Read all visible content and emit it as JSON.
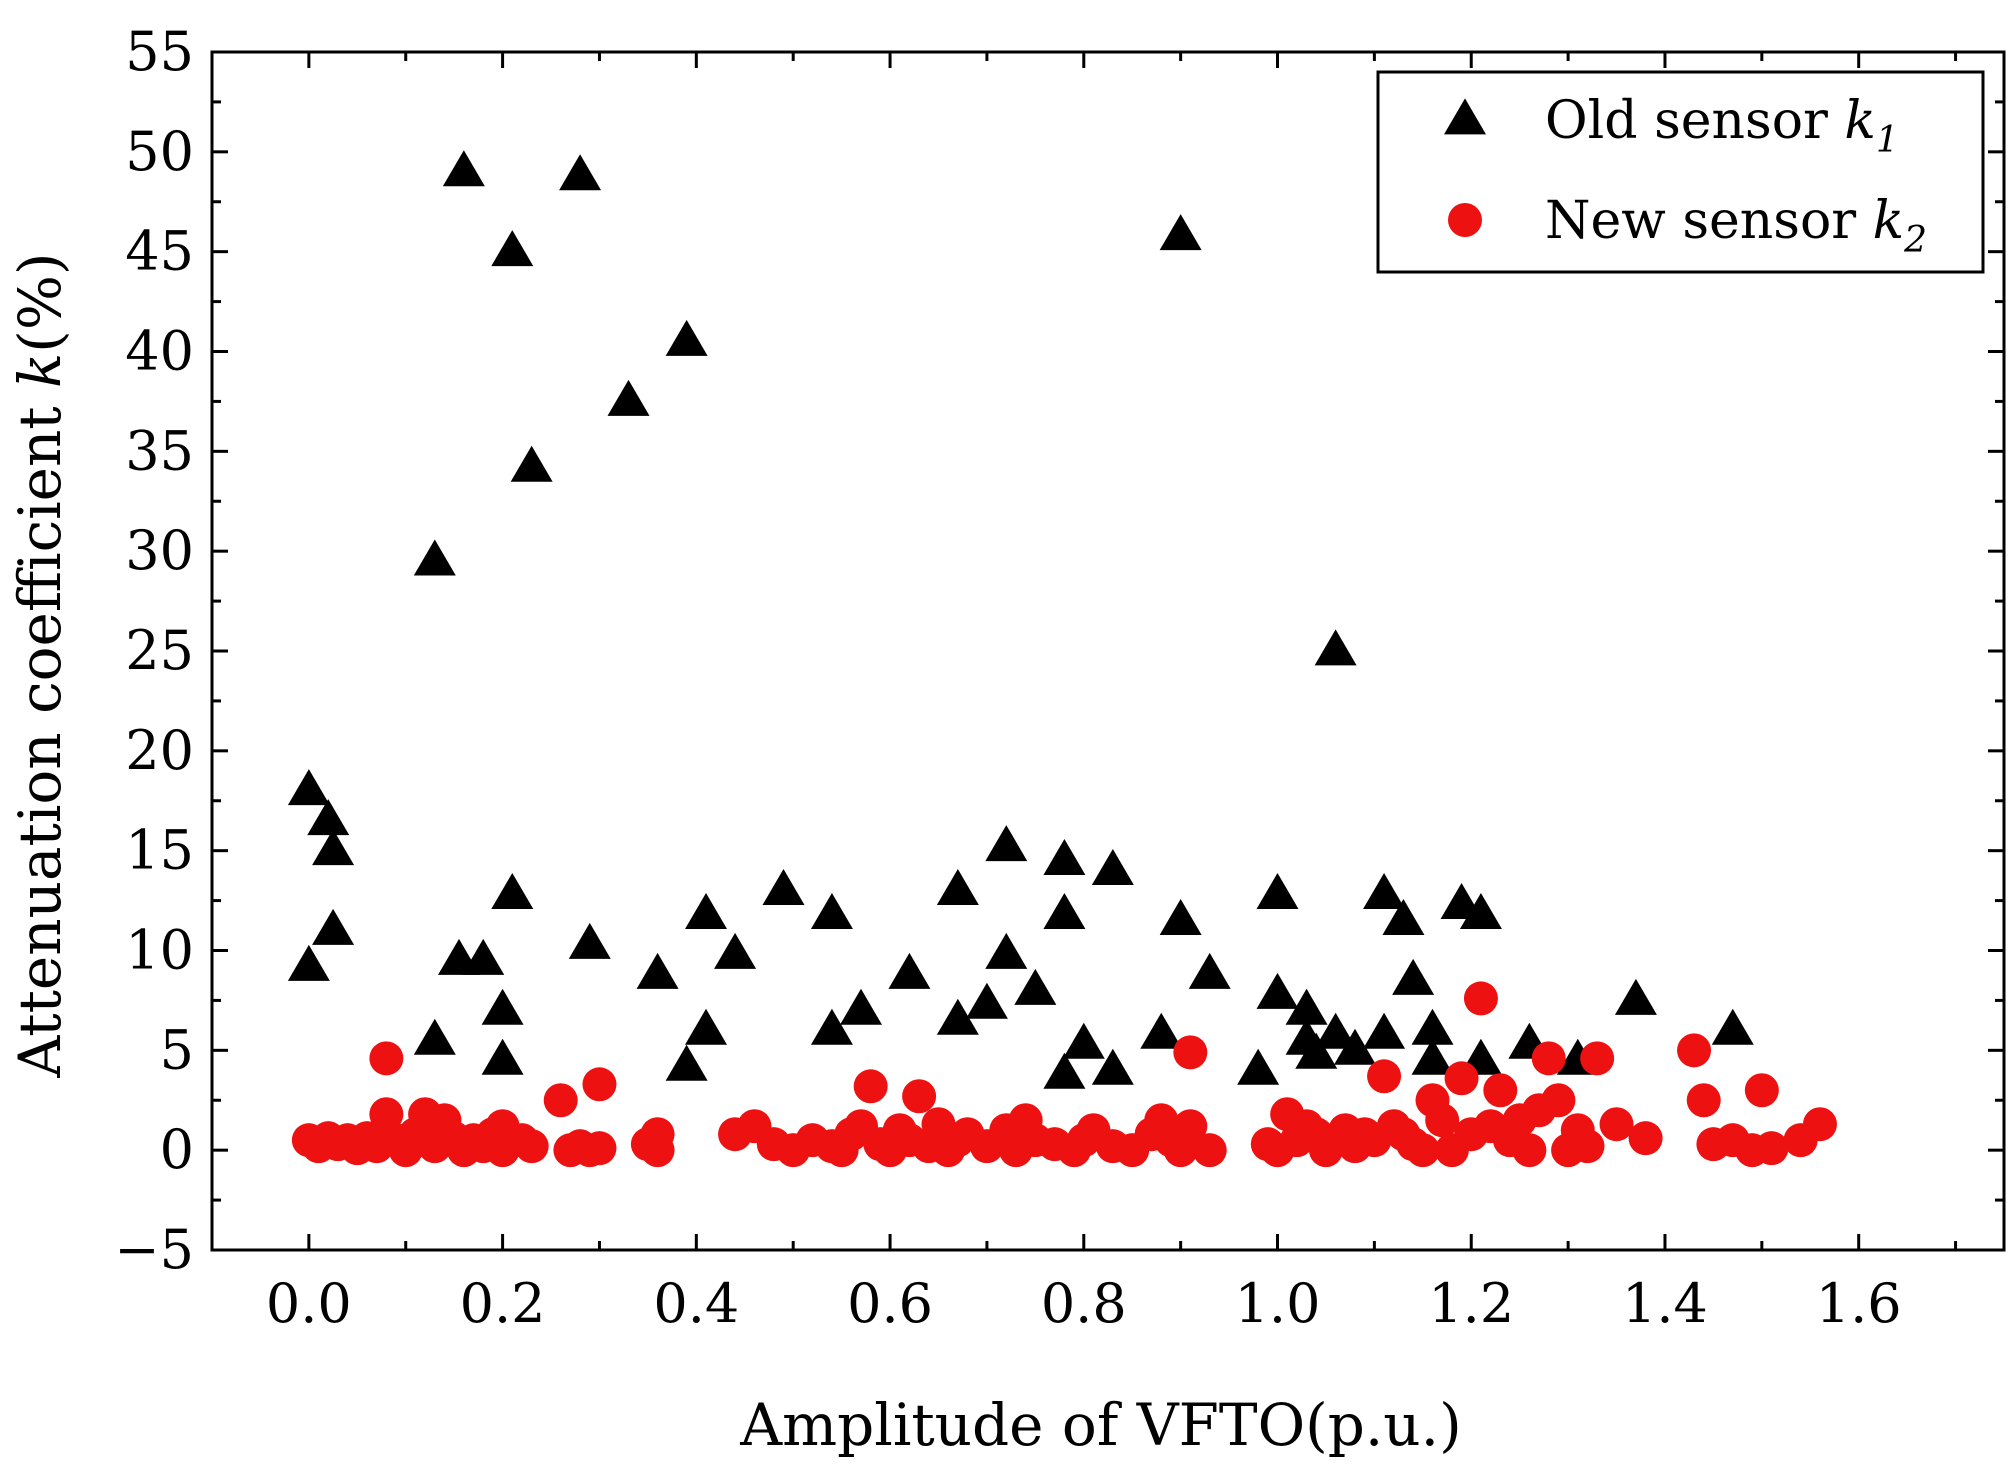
{
  "chart_data": {
    "type": "scatter",
    "xlabel": "Amplitude of VFTO(p.u.)",
    "ylabel": "Attenuation coefficient k(%)",
    "ylabel_parts": [
      "Attenuation coefficient ",
      "k",
      "(%)"
    ],
    "xlim": [
      -0.1,
      1.75
    ],
    "ylim": [
      -5,
      55
    ],
    "xticks": [
      0.0,
      0.2,
      0.4,
      0.6,
      0.8,
      1.0,
      1.2,
      1.4,
      1.6
    ],
    "xtick_labels": [
      "0.0",
      "0.2",
      "0.4",
      "0.6",
      "0.8",
      "1.0",
      "1.2",
      "1.4",
      "1.6"
    ],
    "yticks": [
      -5,
      0,
      5,
      10,
      15,
      20,
      25,
      30,
      35,
      40,
      45,
      50,
      55
    ],
    "ytick_labels": [
      "−5",
      "0",
      "5",
      "10",
      "15",
      "20",
      "25",
      "30",
      "35",
      "40",
      "45",
      "50",
      "55"
    ],
    "legend_position": "top-right",
    "grid": false,
    "series": [
      {
        "name": "Old sensor k1",
        "label_main": "Old sensor ",
        "label_var": "k",
        "label_sub": "1",
        "marker": "triangle",
        "color": "#000000",
        "points": [
          [
            0.0,
            18.0
          ],
          [
            0.02,
            16.5
          ],
          [
            0.025,
            15.0
          ],
          [
            0.0,
            9.2
          ],
          [
            0.025,
            11.0
          ],
          [
            0.13,
            29.5
          ],
          [
            0.16,
            49.0
          ],
          [
            0.21,
            45.0
          ],
          [
            0.23,
            34.2
          ],
          [
            0.28,
            48.8
          ],
          [
            0.33,
            37.5
          ],
          [
            0.39,
            40.5
          ],
          [
            0.13,
            5.5
          ],
          [
            0.155,
            9.5
          ],
          [
            0.18,
            9.5
          ],
          [
            0.2,
            7.0
          ],
          [
            0.2,
            4.5
          ],
          [
            0.21,
            12.8
          ],
          [
            0.29,
            10.3
          ],
          [
            0.36,
            8.8
          ],
          [
            0.39,
            4.2
          ],
          [
            0.41,
            6.0
          ],
          [
            0.41,
            11.8
          ],
          [
            0.44,
            9.8
          ],
          [
            0.49,
            13.0
          ],
          [
            0.54,
            11.8
          ],
          [
            0.54,
            6.0
          ],
          [
            0.57,
            7.0
          ],
          [
            0.62,
            8.8
          ],
          [
            0.67,
            13.0
          ],
          [
            0.67,
            6.5
          ],
          [
            0.7,
            7.3
          ],
          [
            0.72,
            9.8
          ],
          [
            0.72,
            15.2
          ],
          [
            0.75,
            8.0
          ],
          [
            0.78,
            14.5
          ],
          [
            0.78,
            11.8
          ],
          [
            0.78,
            3.8
          ],
          [
            0.8,
            5.3
          ],
          [
            0.83,
            14.0
          ],
          [
            0.83,
            4.0
          ],
          [
            0.88,
            5.8
          ],
          [
            0.9,
            45.8
          ],
          [
            0.9,
            11.5
          ],
          [
            0.93,
            8.8
          ],
          [
            0.98,
            4.0
          ],
          [
            1.0,
            12.8
          ],
          [
            1.0,
            7.8
          ],
          [
            1.03,
            7.0
          ],
          [
            1.03,
            5.5
          ],
          [
            1.04,
            4.8
          ],
          [
            1.06,
            25.0
          ],
          [
            1.06,
            5.8
          ],
          [
            1.08,
            5.0
          ],
          [
            1.11,
            12.8
          ],
          [
            1.11,
            5.8
          ],
          [
            1.13,
            11.5
          ],
          [
            1.14,
            8.5
          ],
          [
            1.16,
            6.0
          ],
          [
            1.16,
            4.5
          ],
          [
            1.19,
            12.3
          ],
          [
            1.21,
            11.8
          ],
          [
            1.21,
            4.5
          ],
          [
            1.26,
            5.3
          ],
          [
            1.31,
            4.5
          ],
          [
            1.37,
            7.5
          ],
          [
            1.47,
            6.0
          ]
        ]
      },
      {
        "name": "New sensor k2",
        "label_main": "New sensor ",
        "label_var": "k",
        "label_sub": "2",
        "marker": "circle",
        "color": "#ee1111",
        "points": [
          [
            0.0,
            0.5
          ],
          [
            0.01,
            0.2
          ],
          [
            0.02,
            0.6
          ],
          [
            0.03,
            0.3
          ],
          [
            0.04,
            0.5
          ],
          [
            0.05,
            0.1
          ],
          [
            0.06,
            0.6
          ],
          [
            0.07,
            0.2
          ],
          [
            0.08,
            1.8
          ],
          [
            0.08,
            4.6
          ],
          [
            0.09,
            0.5
          ],
          [
            0.1,
            0.0
          ],
          [
            0.11,
            0.8
          ],
          [
            0.12,
            1.8
          ],
          [
            0.13,
            0.2
          ],
          [
            0.14,
            1.5
          ],
          [
            0.15,
            0.6
          ],
          [
            0.16,
            0.0
          ],
          [
            0.17,
            0.5
          ],
          [
            0.18,
            0.2
          ],
          [
            0.19,
            0.8
          ],
          [
            0.2,
            0.0
          ],
          [
            0.2,
            1.2
          ],
          [
            0.22,
            0.5
          ],
          [
            0.23,
            0.2
          ],
          [
            0.26,
            2.5
          ],
          [
            0.27,
            0.0
          ],
          [
            0.28,
            0.2
          ],
          [
            0.29,
            0.0
          ],
          [
            0.3,
            3.3
          ],
          [
            0.3,
            0.1
          ],
          [
            0.35,
            0.3
          ],
          [
            0.36,
            0.8
          ],
          [
            0.36,
            0.0
          ],
          [
            0.44,
            0.8
          ],
          [
            0.46,
            1.2
          ],
          [
            0.48,
            0.3
          ],
          [
            0.5,
            0.0
          ],
          [
            0.52,
            0.5
          ],
          [
            0.54,
            0.2
          ],
          [
            0.55,
            0.0
          ],
          [
            0.56,
            0.8
          ],
          [
            0.57,
            1.2
          ],
          [
            0.58,
            3.2
          ],
          [
            0.59,
            0.3
          ],
          [
            0.6,
            0.0
          ],
          [
            0.61,
            1.0
          ],
          [
            0.62,
            0.5
          ],
          [
            0.63,
            2.7
          ],
          [
            0.64,
            0.2
          ],
          [
            0.65,
            1.3
          ],
          [
            0.66,
            0.0
          ],
          [
            0.67,
            0.5
          ],
          [
            0.68,
            0.8
          ],
          [
            0.7,
            0.2
          ],
          [
            0.72,
            1.0
          ],
          [
            0.73,
            0.0
          ],
          [
            0.74,
            1.5
          ],
          [
            0.75,
            0.5
          ],
          [
            0.77,
            0.3
          ],
          [
            0.79,
            0.0
          ],
          [
            0.8,
            0.5
          ],
          [
            0.81,
            1.0
          ],
          [
            0.83,
            0.2
          ],
          [
            0.85,
            0.0
          ],
          [
            0.87,
            0.8
          ],
          [
            0.88,
            1.5
          ],
          [
            0.89,
            0.5
          ],
          [
            0.9,
            0.0
          ],
          [
            0.91,
            1.2
          ],
          [
            0.91,
            4.9
          ],
          [
            0.93,
            0.0
          ],
          [
            0.99,
            0.3
          ],
          [
            1.0,
            0.0
          ],
          [
            1.01,
            1.8
          ],
          [
            1.02,
            0.5
          ],
          [
            1.03,
            1.2
          ],
          [
            1.04,
            0.8
          ],
          [
            1.05,
            0.0
          ],
          [
            1.06,
            0.5
          ],
          [
            1.07,
            1.0
          ],
          [
            1.08,
            0.2
          ],
          [
            1.09,
            0.8
          ],
          [
            1.1,
            0.5
          ],
          [
            1.11,
            3.7
          ],
          [
            1.12,
            1.2
          ],
          [
            1.13,
            0.8
          ],
          [
            1.14,
            0.3
          ],
          [
            1.15,
            0.0
          ],
          [
            1.16,
            2.5
          ],
          [
            1.17,
            1.5
          ],
          [
            1.18,
            0.0
          ],
          [
            1.19,
            3.6
          ],
          [
            1.2,
            0.8
          ],
          [
            1.21,
            7.6
          ],
          [
            1.22,
            1.2
          ],
          [
            1.23,
            3.0
          ],
          [
            1.24,
            0.5
          ],
          [
            1.25,
            1.5
          ],
          [
            1.26,
            0.0
          ],
          [
            1.27,
            2.0
          ],
          [
            1.28,
            4.6
          ],
          [
            1.29,
            2.5
          ],
          [
            1.3,
            0.0
          ],
          [
            1.31,
            1.0
          ],
          [
            1.32,
            0.2
          ],
          [
            1.33,
            4.6
          ],
          [
            1.35,
            1.3
          ],
          [
            1.38,
            0.6
          ],
          [
            1.43,
            5.0
          ],
          [
            1.44,
            2.5
          ],
          [
            1.45,
            0.3
          ],
          [
            1.47,
            0.5
          ],
          [
            1.49,
            0.0
          ],
          [
            1.5,
            3.0
          ],
          [
            1.51,
            0.1
          ],
          [
            1.54,
            0.5
          ],
          [
            1.56,
            1.3
          ]
        ]
      }
    ]
  }
}
